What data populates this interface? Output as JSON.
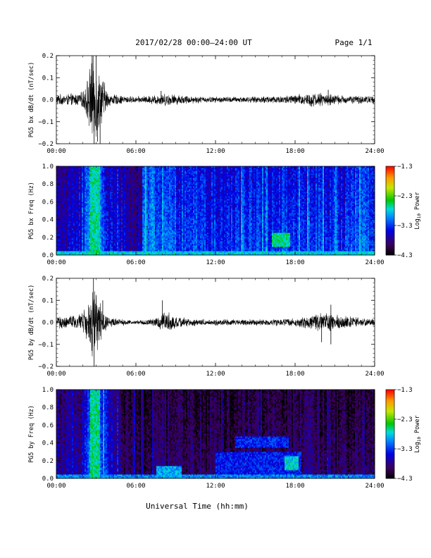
{
  "header": {
    "title": "2017/02/28   00:00–24:00 UT",
    "page": "Page 1/1"
  },
  "xaxis_label": "Universal Time (hh:mm)",
  "chart_data": [
    {
      "type": "line",
      "ylabel": "PG5 bx dB/dt (nT/sec)",
      "xlim_hours": [
        0,
        24
      ],
      "xticks": [
        "00:00",
        "06:00",
        "12:00",
        "18:00",
        "24:00"
      ],
      "ylim": [
        -0.2,
        0.2
      ],
      "yticks": [
        "0.2",
        "0.1",
        "0.0",
        "−0.1",
        "−0.2"
      ],
      "ytick_values": [
        0.2,
        0.1,
        0.0,
        -0.1,
        -0.2
      ],
      "envelope": {
        "x": [
          0,
          0.5,
          1,
          1.5,
          2,
          2.4,
          2.6,
          2.8,
          3.0,
          3.2,
          3.5,
          3.8,
          4,
          5,
          6,
          7,
          7.5,
          8,
          8.5,
          9,
          10,
          11,
          12,
          13,
          14,
          15,
          16,
          17,
          18,
          19,
          20,
          21,
          22,
          23,
          24
        ],
        "amplitude": [
          0.03,
          0.025,
          0.03,
          0.03,
          0.04,
          0.12,
          0.2,
          0.2,
          0.2,
          0.15,
          0.12,
          0.05,
          0.03,
          0.02,
          0.015,
          0.02,
          0.025,
          0.03,
          0.03,
          0.025,
          0.02,
          0.015,
          0.015,
          0.015,
          0.015,
          0.015,
          0.02,
          0.02,
          0.025,
          0.035,
          0.035,
          0.025,
          0.02,
          0.02,
          0.02
        ]
      },
      "spikes": [
        {
          "x": 2.7,
          "y": 0.2
        },
        {
          "x": 2.85,
          "y": -0.2
        },
        {
          "x": 3.0,
          "y": 0.2
        },
        {
          "x": 3.3,
          "y": -0.2
        },
        {
          "x": 3.1,
          "y": -0.19
        },
        {
          "x": 7.9,
          "y": 0.04
        },
        {
          "x": 20.5,
          "y": 0.045
        }
      ]
    },
    {
      "type": "heatmap",
      "ylabel": "PG5 bx Freq (Hz)",
      "xlim_hours": [
        0,
        24
      ],
      "xticks": [
        "00:00",
        "06:00",
        "12:00",
        "18:00",
        "24:00"
      ],
      "ylim": [
        0,
        1.0
      ],
      "yticks": [
        "1.0",
        "0.8",
        "0.6",
        "0.4",
        "0.2",
        "0.0"
      ],
      "ytick_values": [
        1.0,
        0.8,
        0.6,
        0.4,
        0.2,
        0.0
      ],
      "colorbar": {
        "label": "Log10 Power",
        "label_base": "Log",
        "label_sub": "10",
        "label_rest": " Power",
        "ticks": [
          "−1.3",
          "−2.3",
          "−3.3",
          "−4.3"
        ],
        "tick_values": [
          -1.3,
          -2.3,
          -3.3,
          -4.3
        ],
        "range": [
          -4.3,
          -1.3
        ]
      },
      "background_profile": {
        "x": [
          0,
          1,
          2,
          2.5,
          3,
          3.5,
          4,
          5,
          6,
          6.5,
          6.6,
          7,
          8,
          9,
          9.3,
          9.5,
          10,
          12,
          14,
          16,
          18,
          20,
          22,
          23,
          24
        ],
        "level": [
          0.25,
          0.25,
          0.3,
          0.45,
          0.5,
          0.4,
          0.3,
          0.25,
          0.2,
          0.22,
          0.4,
          0.42,
          0.4,
          0.38,
          0.3,
          0.35,
          0.35,
          0.33,
          0.33,
          0.35,
          0.35,
          0.35,
          0.33,
          0.4,
          0.38
        ]
      },
      "features": [
        {
          "x_start": 2.5,
          "x_end": 3.3,
          "f_low": 0.0,
          "f_high": 1.0,
          "level": 0.55
        },
        {
          "x_start": 0,
          "x_end": 24,
          "f_low": 0.0,
          "f_high": 0.05,
          "level": 0.5
        },
        {
          "x_start": 16.3,
          "x_end": 17.6,
          "f_low": 0.1,
          "f_high": 0.25,
          "level": 0.55
        }
      ]
    },
    {
      "type": "line",
      "ylabel": "PG5 by dB/dt (nT/sec)",
      "xlim_hours": [
        0,
        24
      ],
      "xticks": [
        "00:00",
        "06:00",
        "12:00",
        "18:00",
        "24:00"
      ],
      "ylim": [
        -0.2,
        0.2
      ],
      "yticks": [
        "0.2",
        "0.1",
        "0.0",
        "−0.1",
        "−0.2"
      ],
      "ytick_values": [
        0.2,
        0.1,
        0.0,
        -0.1,
        -0.2
      ],
      "envelope": {
        "x": [
          0,
          0.5,
          1,
          1.5,
          2,
          2.4,
          2.6,
          2.8,
          3.0,
          3.2,
          3.5,
          3.8,
          4,
          5,
          6,
          7,
          7.5,
          8,
          8.5,
          9,
          10,
          11,
          12,
          13,
          14,
          15,
          16,
          17,
          18,
          19,
          20,
          20.5,
          21,
          22,
          23,
          24
        ],
        "amplitude": [
          0.03,
          0.03,
          0.035,
          0.035,
          0.05,
          0.1,
          0.15,
          0.2,
          0.15,
          0.12,
          0.07,
          0.04,
          0.025,
          0.015,
          0.01,
          0.015,
          0.02,
          0.05,
          0.05,
          0.03,
          0.02,
          0.015,
          0.015,
          0.015,
          0.015,
          0.015,
          0.015,
          0.02,
          0.02,
          0.03,
          0.045,
          0.05,
          0.04,
          0.03,
          0.02,
          0.02
        ]
      },
      "spikes": [
        {
          "x": 2.8,
          "y": 0.2
        },
        {
          "x": 2.85,
          "y": -0.2
        },
        {
          "x": 3.5,
          "y": 0.1
        },
        {
          "x": 8.0,
          "y": 0.1
        },
        {
          "x": 20.7,
          "y": 0.08
        },
        {
          "x": 20.7,
          "y": -0.1
        },
        {
          "x": 20.0,
          "y": -0.09
        }
      ]
    },
    {
      "type": "heatmap",
      "ylabel": "PG5 by Freq (Hz)",
      "xlim_hours": [
        0,
        24
      ],
      "xticks": [
        "00:00",
        "06:00",
        "12:00",
        "18:00",
        "24:00"
      ],
      "ylim": [
        0,
        1.0
      ],
      "yticks": [
        "1.0",
        "0.8",
        "0.6",
        "0.4",
        "0.2",
        "0.0"
      ],
      "ytick_values": [
        1.0,
        0.8,
        0.6,
        0.4,
        0.2,
        0.0
      ],
      "colorbar": {
        "label": "Log10 Power",
        "label_base": "Log",
        "label_sub": "10",
        "label_rest": " Power",
        "ticks": [
          "−1.3",
          "−2.3",
          "−3.3",
          "−4.3"
        ],
        "tick_values": [
          -1.3,
          -2.3,
          -3.3,
          -4.3
        ],
        "range": [
          -4.3,
          -1.3
        ]
      },
      "background_profile": {
        "x": [
          0,
          1,
          2,
          2.5,
          3,
          3.5,
          4,
          5,
          6,
          7,
          8,
          9,
          10,
          12,
          14,
          16,
          18,
          20,
          22,
          24
        ],
        "level": [
          0.18,
          0.2,
          0.22,
          0.4,
          0.45,
          0.35,
          0.25,
          0.15,
          0.12,
          0.12,
          0.14,
          0.13,
          0.12,
          0.12,
          0.13,
          0.13,
          0.14,
          0.14,
          0.12,
          0.12
        ]
      },
      "features": [
        {
          "x_start": 2.5,
          "x_end": 3.3,
          "f_low": 0.0,
          "f_high": 1.0,
          "level": 0.55
        },
        {
          "x_start": 0,
          "x_end": 24,
          "f_low": 0.0,
          "f_high": 0.05,
          "level": 0.42
        },
        {
          "x_start": 7.5,
          "x_end": 9.5,
          "f_low": 0.0,
          "f_high": 0.15,
          "level": 0.45
        },
        {
          "x_start": 13.5,
          "x_end": 17.5,
          "f_low": 0.35,
          "f_high": 0.48,
          "level": 0.32
        },
        {
          "x_start": 12,
          "x_end": 18.5,
          "f_low": 0.05,
          "f_high": 0.3,
          "level": 0.3
        },
        {
          "x_start": 17.2,
          "x_end": 18.3,
          "f_low": 0.1,
          "f_high": 0.25,
          "level": 0.5
        }
      ]
    }
  ]
}
